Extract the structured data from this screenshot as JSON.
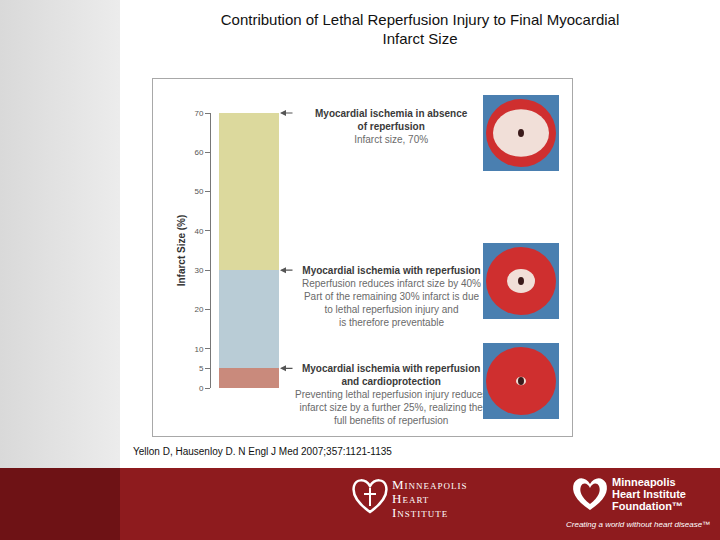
{
  "slide": {
    "title": [
      "Contribution of Lethal Reperfusion Injury to Final Myocardial",
      "Infarct Size"
    ],
    "citation": "Yellon D, Hausenloy D. N Engl J Med 2007;357:1121-1135",
    "footer": {
      "institute": [
        "Minneapolis",
        "Heart",
        "Institute"
      ],
      "foundation": [
        "Minneapolis",
        "Heart Institute",
        "Foundation™"
      ],
      "tagline": "Creating a world without heart disease™"
    }
  },
  "chart_data": {
    "type": "bar",
    "stacked": true,
    "categories": [
      null
    ],
    "series": [
      {
        "color": "#c98a7c",
        "values": [
          5
        ]
      },
      {
        "color": "#b9ccd6",
        "values": [
          25
        ]
      },
      {
        "color": "#dcd99d",
        "values": [
          40
        ]
      }
    ],
    "y_label": "Infarct Size (%)",
    "ylim": [
      0,
      70
    ],
    "yticks": [
      0,
      5,
      10,
      20,
      30,
      40,
      50,
      60,
      70
    ],
    "grid": false,
    "tick_labels": "y",
    "annotations": [
      {
        "y": 70,
        "title": [
          "Myocardial ischemia in absence",
          "of reperfusion"
        ],
        "text": [
          "Infarct size, 70%"
        ]
      },
      {
        "y": 30,
        "title": [
          "Myocardial ischemia with reperfusion"
        ],
        "text": [
          "Reperfusion reduces infarct size by 40%",
          "Part of the remaining 30% infarct is due",
          "to lethal reperfusion injury and",
          "is therefore preventable"
        ]
      },
      {
        "y": 5,
        "title": [
          "Myocardial ischemia with reperfusion",
          "and cardioprotection"
        ],
        "text": [
          "Preventing lethal reperfusion injury reduces",
          "infarct size by a further 25%, realizing the",
          "full benefits of reperfusion"
        ]
      }
    ]
  }
}
